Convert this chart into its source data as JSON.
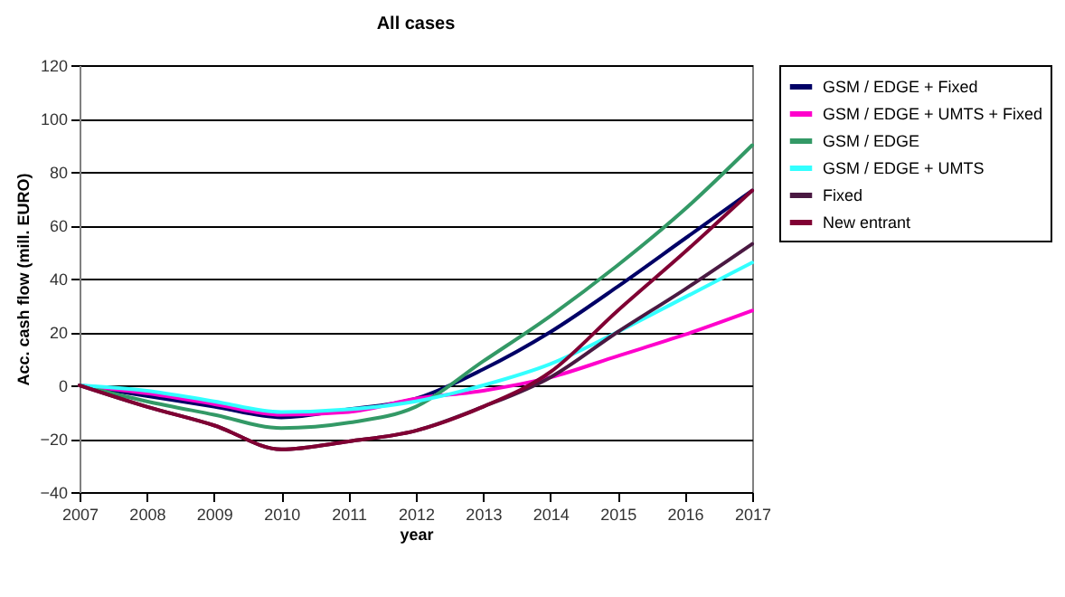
{
  "chart_data": {
    "type": "line",
    "title": "All cases",
    "xlabel": "year",
    "ylabel": "Acc. cash flow (mill. EURO)",
    "x": [
      2007,
      2008,
      2009,
      2010,
      2011,
      2012,
      2013,
      2014,
      2015,
      2016,
      2017
    ],
    "xlim": [
      2007,
      2017
    ],
    "xticks": [
      2007,
      2008,
      2009,
      2010,
      2011,
      2012,
      2013,
      2014,
      2015,
      2016,
      2017
    ],
    "ylim": [
      -40,
      120
    ],
    "yticks": [
      -40,
      -20,
      0,
      20,
      40,
      60,
      80,
      100,
      120
    ],
    "grid": "y",
    "legend": "right",
    "marker": "none",
    "line_style": "solid",
    "series": [
      {
        "name": "GSM / EDGE + Fixed",
        "color": "#000066",
        "values": [
          0,
          -4,
          -8,
          -12,
          -9,
          -5,
          6,
          20,
          37,
          55,
          73
        ]
      },
      {
        "name": "GSM / EDGE + UMTS + Fixed",
        "color": "#ff00cc",
        "values": [
          0,
          -3,
          -7,
          -11,
          -10,
          -5,
          -2,
          3,
          11,
          19,
          28
        ]
      },
      {
        "name": "GSM / EDGE",
        "color": "#339966",
        "values": [
          0,
          -6,
          -11,
          -16,
          -14,
          -8,
          9,
          26,
          45,
          66,
          90
        ]
      },
      {
        "name": "GSM / EDGE + UMTS",
        "color": "#33ffff",
        "values": [
          0,
          -2,
          -6,
          -10,
          -9,
          -6,
          0,
          8,
          20,
          33,
          46
        ]
      },
      {
        "name": "Fixed",
        "color": "#4a1942",
        "values": [
          0,
          -8,
          -15,
          -24,
          -21,
          -17,
          -8,
          3,
          20,
          36,
          53
        ]
      },
      {
        "name": "New entrant",
        "color": "#800033",
        "values": [
          0,
          -8,
          -15,
          -24,
          -21,
          -17,
          -8,
          5,
          28,
          50,
          73
        ]
      }
    ]
  }
}
